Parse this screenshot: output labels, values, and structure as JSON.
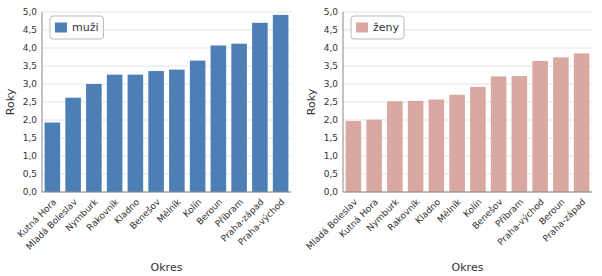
{
  "chart_data": [
    {
      "type": "bar",
      "categories": [
        "Kutná Hora",
        "Mladá Boleslav",
        "Nymburk",
        "Rakovník",
        "Kladno",
        "Benešov",
        "Mělník",
        "Kolín",
        "Beroun",
        "Příbram",
        "Praha-západ",
        "Praha-východ"
      ],
      "series": [
        {
          "name": "muži",
          "color": "#4d7fb5",
          "values": [
            1.93,
            2.62,
            3.0,
            3.26,
            3.26,
            3.36,
            3.4,
            3.65,
            4.07,
            4.12,
            4.7,
            4.92
          ]
        }
      ],
      "xlabel": "Okres",
      "ylabel": "Roky",
      "ylim": [
        0,
        5.0
      ],
      "yticks": [
        {
          "value": 0.0,
          "label": "0,0"
        },
        {
          "value": 0.5,
          "label": "0,5"
        },
        {
          "value": 1.0,
          "label": "1,0"
        },
        {
          "value": 1.5,
          "label": "1,5"
        },
        {
          "value": 2.0,
          "label": "2,0"
        },
        {
          "value": 2.5,
          "label": "2,5"
        },
        {
          "value": 3.0,
          "label": "3,0"
        },
        {
          "value": 3.5,
          "label": "3,5"
        },
        {
          "value": 4.0,
          "label": "4,0"
        },
        {
          "value": 4.5,
          "label": "4,5"
        },
        {
          "value": 5.0,
          "label": "5,0"
        }
      ],
      "grid": true,
      "legend": "upper left"
    },
    {
      "type": "bar",
      "categories": [
        "Mladá Boleslav",
        "Kutná Hora",
        "Nymburk",
        "Rakovník",
        "Kladno",
        "Mělník",
        "Kolín",
        "Benešov",
        "Příbram",
        "Praha-východ",
        "Beroun",
        "Praha-západ"
      ],
      "series": [
        {
          "name": "ženy",
          "color": "#d9a8a0",
          "values": [
            1.97,
            2.01,
            2.52,
            2.53,
            2.57,
            2.7,
            2.92,
            3.21,
            3.22,
            3.64,
            3.74,
            3.85
          ]
        }
      ],
      "xlabel": "Okres",
      "ylabel": "Roky",
      "ylim": [
        0,
        5.0
      ],
      "yticks": [
        {
          "value": 0.0,
          "label": "0,0"
        },
        {
          "value": 0.5,
          "label": "0,5"
        },
        {
          "value": 1.0,
          "label": "1,0"
        },
        {
          "value": 1.5,
          "label": "1,5"
        },
        {
          "value": 2.0,
          "label": "2,0"
        },
        {
          "value": 2.5,
          "label": "2,5"
        },
        {
          "value": 3.0,
          "label": "3,0"
        },
        {
          "value": 3.5,
          "label": "3,5"
        },
        {
          "value": 4.0,
          "label": "4,0"
        },
        {
          "value": 4.5,
          "label": "4,5"
        },
        {
          "value": 5.0,
          "label": "5,0"
        }
      ],
      "grid": true,
      "legend": "upper left"
    }
  ]
}
